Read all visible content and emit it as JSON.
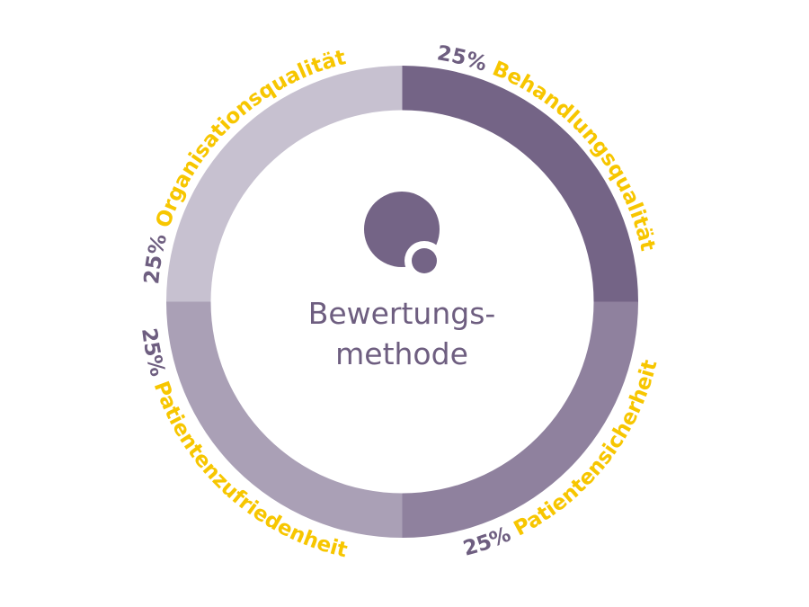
{
  "chart_data": {
    "type": "pie",
    "style": "donut",
    "center_title_lines": [
      "Bewertungs-",
      "methode"
    ],
    "categories": [
      "Behandlungsqualität",
      "Patientensicherheit",
      "Patientenzufriedenheit",
      "Organisationsqualität"
    ],
    "values": [
      25,
      25,
      25,
      25
    ],
    "value_labels": [
      "25%",
      "25%",
      "25%",
      "25%"
    ],
    "colors": [
      "#746486",
      "#8f819e",
      "#aaa0b6",
      "#c7c1d0"
    ],
    "label_color": "#f7c600",
    "value_label_color": "#6e5e80",
    "center_text_color": "#6e5e80",
    "icon": "logo-circle-icon"
  }
}
